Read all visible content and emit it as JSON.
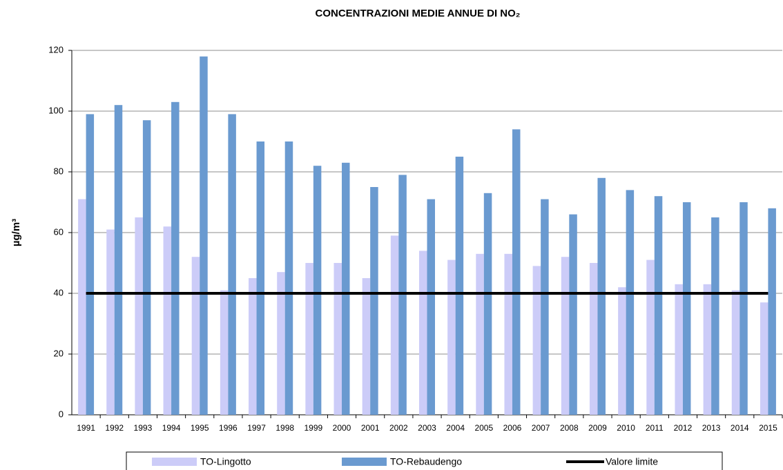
{
  "chart_data": {
    "type": "bar",
    "title": "CONCENTRAZIONI MEDIE ANNUE DI NO₂",
    "y_label": "µg/m³",
    "categories": [
      "1991",
      "1992",
      "1993",
      "1994",
      "1995",
      "1996",
      "1997",
      "1998",
      "1999",
      "2000",
      "2001",
      "2002",
      "2003",
      "2004",
      "2005",
      "2006",
      "2007",
      "2008",
      "2009",
      "2010",
      "2011",
      "2012",
      "2013",
      "2014",
      "2015"
    ],
    "series": [
      {
        "name": "TO-Lingotto",
        "color": "#ccccf8",
        "values": [
          71,
          61,
          65,
          62,
          52,
          41,
          45,
          47,
          50,
          50,
          45,
          59,
          54,
          51,
          53,
          53,
          49,
          52,
          50,
          42,
          51,
          43,
          43,
          41,
          37
        ]
      },
      {
        "name": "TO-Rebaudengo",
        "color": "#6a9ad0",
        "values": [
          99,
          102,
          97,
          103,
          118,
          99,
          90,
          90,
          82,
          83,
          75,
          79,
          71,
          85,
          73,
          94,
          71,
          66,
          78,
          74,
          72,
          70,
          65,
          70,
          68
        ]
      },
      {
        "name": "Valore limite",
        "color": "#000000",
        "type": "line",
        "values": [
          40,
          40,
          40,
          40,
          40,
          40,
          40,
          40,
          40,
          40,
          40,
          40,
          40,
          40,
          40,
          40,
          40,
          40,
          40,
          40,
          40,
          40,
          40,
          40,
          40
        ]
      }
    ],
    "ylim": [
      0,
      120
    ],
    "yticks": [
      0,
      20,
      40,
      60,
      80,
      100,
      120
    ],
    "grid": true,
    "legend": "bottom"
  }
}
